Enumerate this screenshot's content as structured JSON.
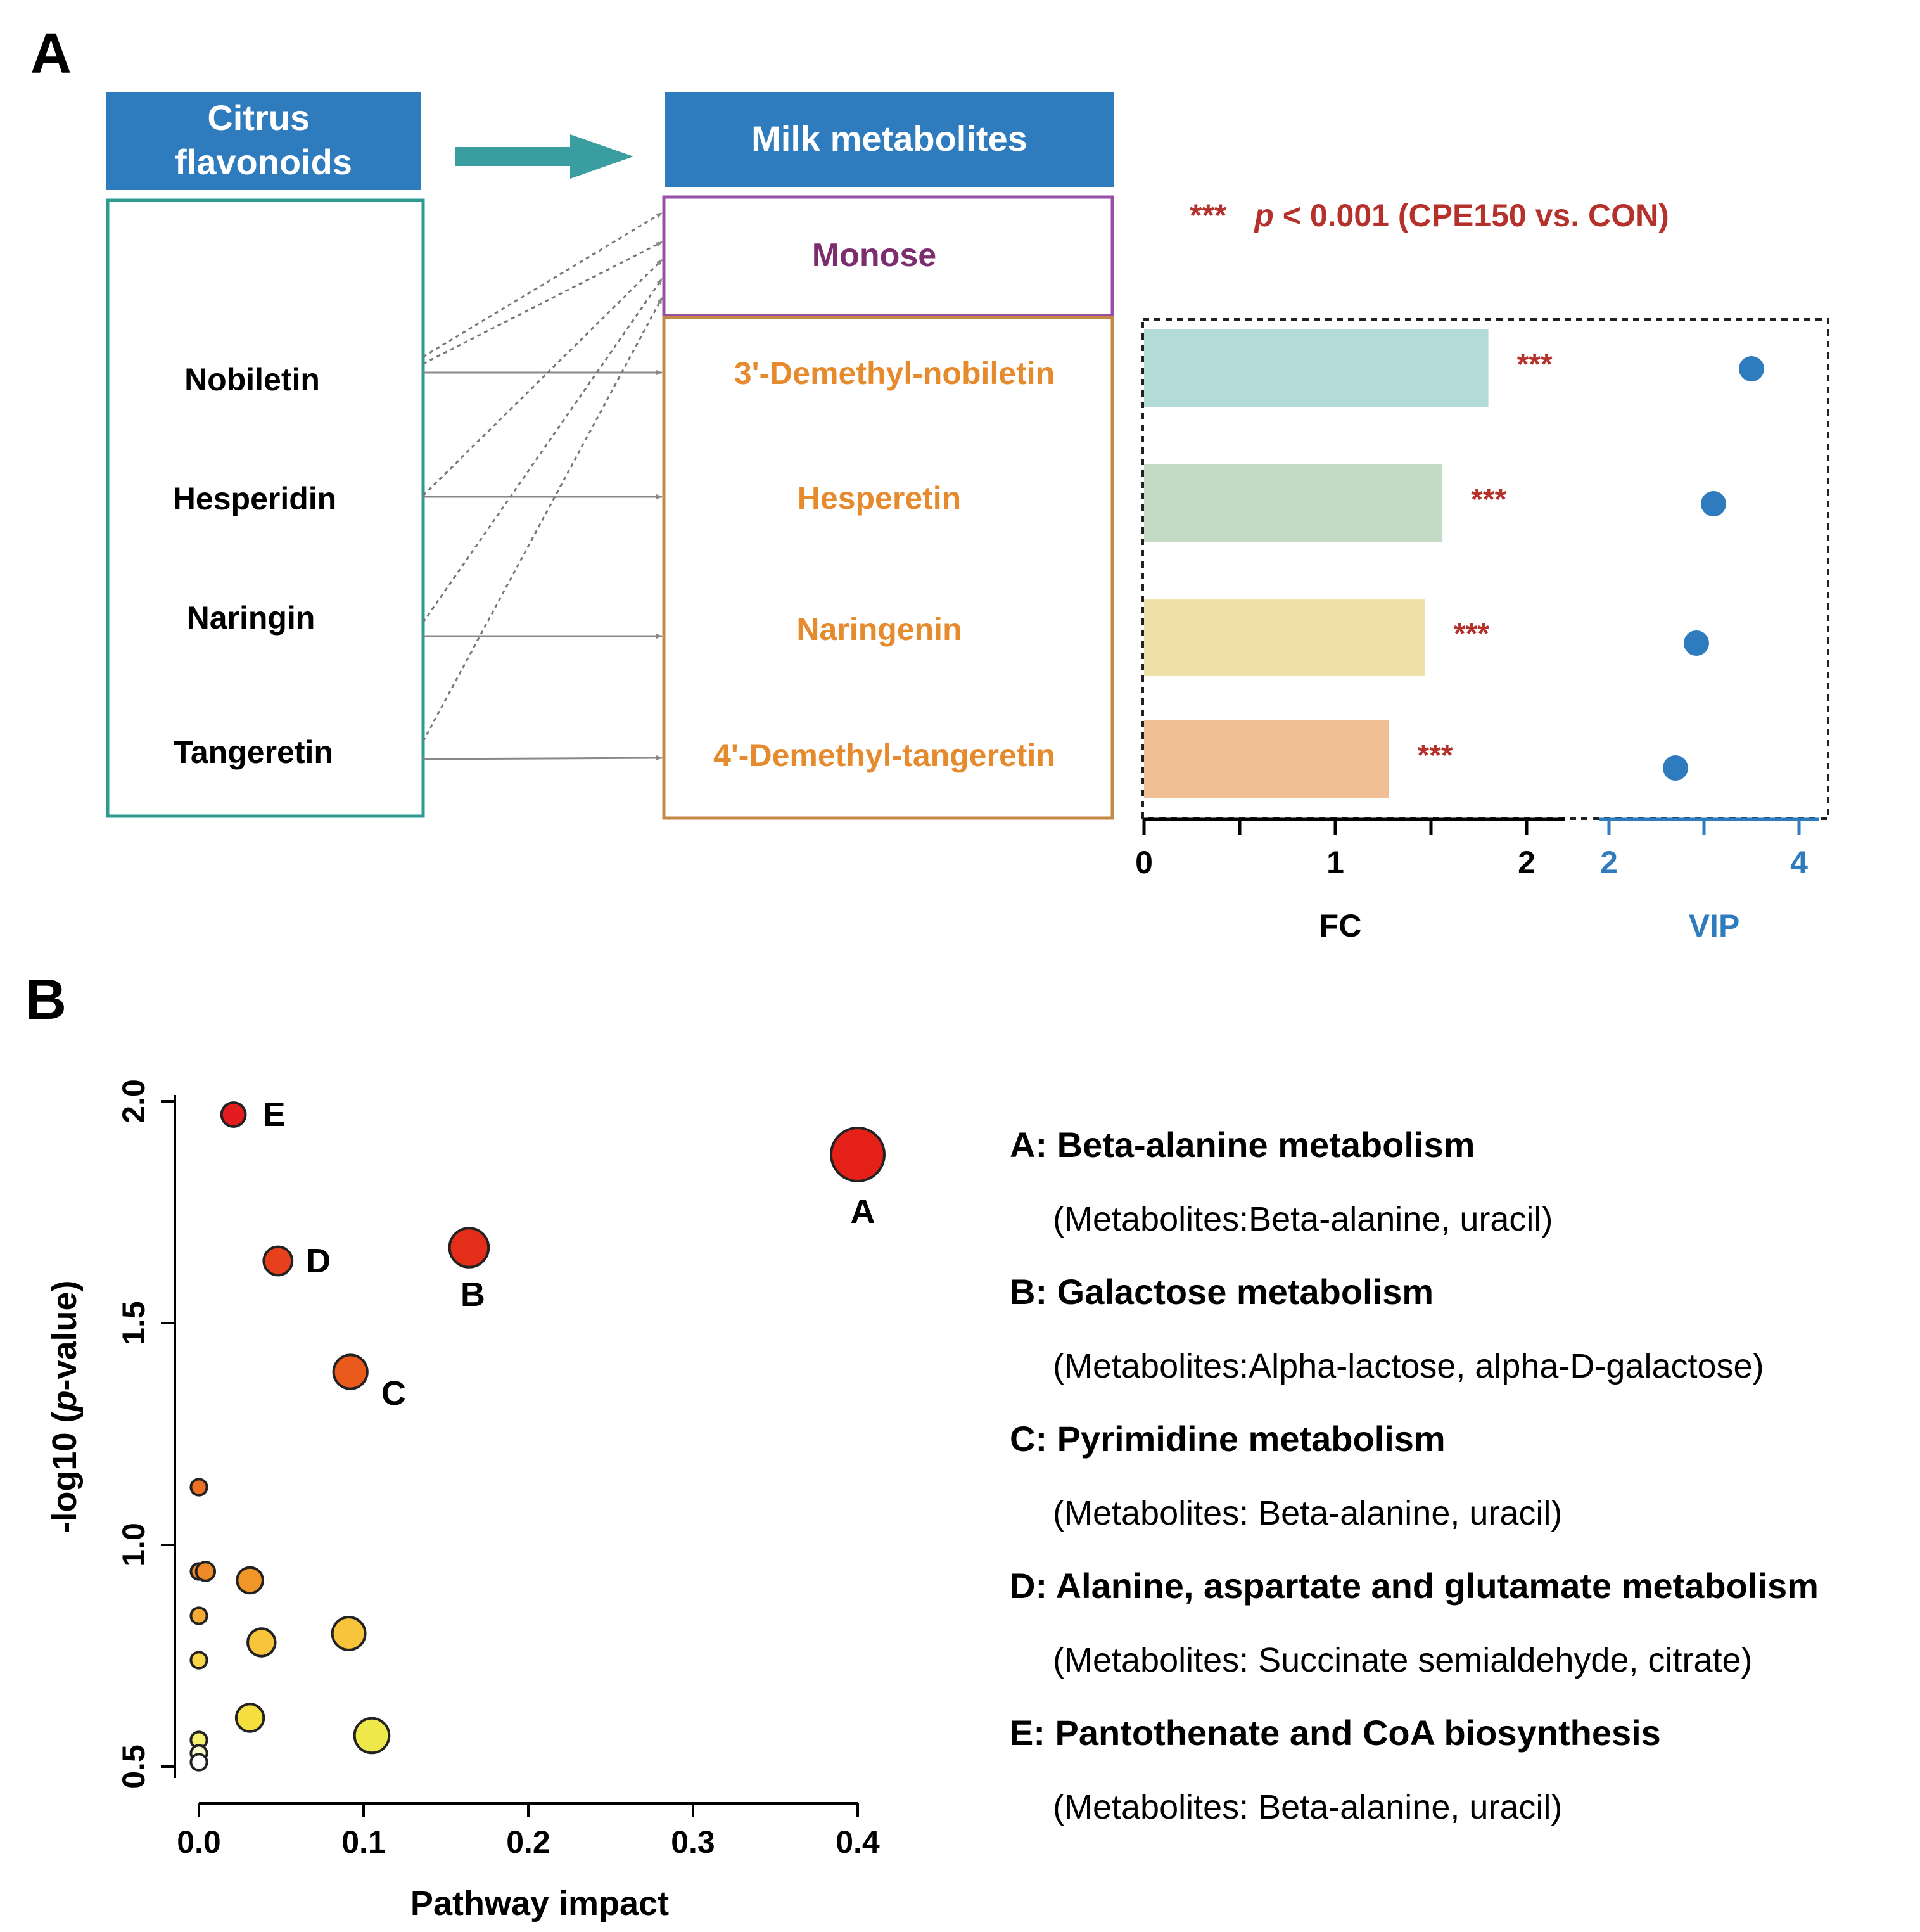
{
  "panel_a": {
    "label": "A",
    "source_header": "Citrus flavonoids",
    "source_header_lines": [
      "Citrus",
      "flavonoids"
    ],
    "target_header": "Milk metabolites",
    "monose_label": "Monose",
    "flavonoids": [
      "Nobiletin",
      "Hesperidin",
      "Naringin",
      "Tangeretin"
    ],
    "metabolites": [
      "3'-Demethyl-nobiletin",
      "Hesperetin",
      "Naringenin",
      "4'-Demethyl-tangeretin"
    ],
    "significance_stars": "***",
    "significance_p": "p",
    "significance_rest": " < 0.001 (CPE150 vs. CON)",
    "colors": {
      "header_fill": "#2e7bbd",
      "flavonoid_box": "#2e9b8f",
      "monose_box": "#9a4fa6",
      "monose_text": "#7b2d6e",
      "metabolite_box": "#c48a45",
      "metabolite_text": "#e68a2e",
      "arrow": "#3a9ea0",
      "star_text": "#b5312b",
      "vip_dot": "#2e7bbd"
    }
  },
  "chart_data": [
    {
      "type": "bar",
      "orientation": "horizontal",
      "categories": [
        "3'-Demethyl-nobiletin",
        "Hesperetin",
        "Naringenin",
        "4'-Demethyl-tangeretin"
      ],
      "values": [
        1.8,
        1.56,
        1.47,
        1.28
      ],
      "significance": [
        "***",
        "***",
        "***",
        "***"
      ],
      "bar_colors": [
        "#b3dcd8",
        "#c4dbc5",
        "#efe1a8",
        "#f0c094"
      ],
      "xlabel": "FC",
      "xlim": [
        0,
        2.2
      ],
      "xticks": [
        0,
        1,
        2
      ],
      "xtick_labels": [
        "0",
        "1",
        "2"
      ]
    },
    {
      "type": "scatter",
      "categories": [
        "3'-Demethyl-nobiletin",
        "Hesperetin",
        "Naringenin",
        "4'-Demethyl-tangeretin"
      ],
      "values": [
        3.5,
        3.1,
        2.92,
        2.7
      ],
      "xlabel": "VIP",
      "xlim": [
        2,
        4.2
      ],
      "xticks": [
        2,
        4
      ],
      "xtick_labels": [
        "2",
        "4"
      ]
    },
    {
      "type": "scatter",
      "panel_label": "B",
      "xlabel": "Pathway impact",
      "ylabel_prefix": "-log10 (",
      "ylabel_italic": "p",
      "ylabel_suffix": "-value)",
      "xlim": [
        0,
        0.4
      ],
      "ylim": [
        0.5,
        2.0
      ],
      "xticks": [
        0,
        0.1,
        0.2,
        0.3,
        0.4
      ],
      "xtick_labels": [
        "0.0",
        "0.1",
        "0.2",
        "0.3",
        "0.4"
      ],
      "yticks": [
        0.5,
        1.0,
        1.5,
        2.0
      ],
      "ytick_labels": [
        "0.5",
        "1.0",
        "1.5",
        "2.0"
      ],
      "points": [
        {
          "x": 0.4,
          "y": 1.88,
          "size": 3.0,
          "color": "#e42019",
          "label": "A"
        },
        {
          "x": 0.164,
          "y": 1.67,
          "size": 2.2,
          "color": "#e42e1a",
          "label": "B"
        },
        {
          "x": 0.092,
          "y": 1.39,
          "size": 1.9,
          "color": "#ea5a1c",
          "label": "C"
        },
        {
          "x": 0.048,
          "y": 1.64,
          "size": 1.6,
          "color": "#e6401c",
          "label": "D"
        },
        {
          "x": 0.021,
          "y": 1.97,
          "size": 1.35,
          "color": "#e21c1f",
          "label": "E"
        },
        {
          "x": 0.0,
          "y": 1.13,
          "size": 0.9,
          "color": "#ec6f22",
          "label": ""
        },
        {
          "x": 0.0,
          "y": 0.94,
          "size": 0.9,
          "color": "#f08a26",
          "label": ""
        },
        {
          "x": 0.004,
          "y": 0.94,
          "size": 1.05,
          "color": "#f08a26",
          "label": ""
        },
        {
          "x": 0.031,
          "y": 0.92,
          "size": 1.45,
          "color": "#f3962a",
          "label": ""
        },
        {
          "x": 0.0,
          "y": 0.84,
          "size": 0.9,
          "color": "#f5aa33",
          "label": ""
        },
        {
          "x": 0.038,
          "y": 0.78,
          "size": 1.55,
          "color": "#f7c43c",
          "label": ""
        },
        {
          "x": 0.091,
          "y": 0.8,
          "size": 1.85,
          "color": "#f7c43c",
          "label": ""
        },
        {
          "x": 0.0,
          "y": 0.74,
          "size": 0.9,
          "color": "#f8d647",
          "label": ""
        },
        {
          "x": 0.031,
          "y": 0.61,
          "size": 1.55,
          "color": "#f5df3f",
          "label": ""
        },
        {
          "x": 0.105,
          "y": 0.57,
          "size": 1.95,
          "color": "#efe84a",
          "label": ""
        },
        {
          "x": 0.0,
          "y": 0.56,
          "size": 0.9,
          "color": "#f6f070",
          "label": ""
        },
        {
          "x": 0.0,
          "y": 0.53,
          "size": 0.9,
          "color": "#fbfbd0",
          "label": ""
        },
        {
          "x": 0.0,
          "y": 0.51,
          "size": 0.9,
          "color": "#ffffff",
          "label": ""
        }
      ],
      "legend": [
        {
          "title": "A: Beta-alanine metabolism",
          "detail": "(Metabolites:Beta-alanine, uracil)"
        },
        {
          "title": "B: Galactose metabolism",
          "detail": "(Metabolites:Alpha-lactose, alpha-D-galactose)"
        },
        {
          "title": "C: Pyrimidine metabolism",
          "detail": "(Metabolites: Beta-alanine, uracil)"
        },
        {
          "title": "D: Alanine, aspartate and glutamate metabolism",
          "detail": "(Metabolites: Succinate semialdehyde, citrate)"
        },
        {
          "title": "E: Pantothenate and CoA biosynthesis",
          "detail": "(Metabolites: Beta-alanine, uracil)"
        }
      ]
    }
  ]
}
